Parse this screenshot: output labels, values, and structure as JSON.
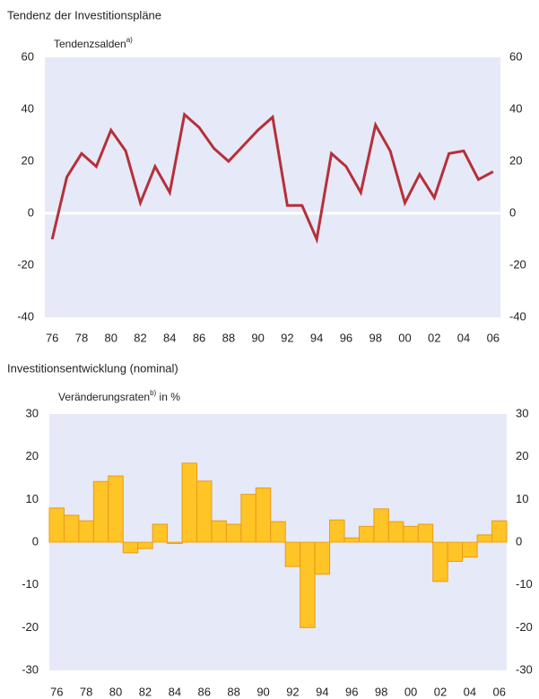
{
  "chart_data": [
    {
      "type": "line",
      "title": "Tendenz der Investitionspläne",
      "y_label": "Tendenzsalden",
      "y_label_note": "a)",
      "categories": [
        "76",
        null,
        "78",
        null,
        "80",
        null,
        "82",
        null,
        "84",
        null,
        "86",
        null,
        "88",
        null,
        "90",
        null,
        "92",
        null,
        "94",
        null,
        "96",
        null,
        "98",
        null,
        "00",
        null,
        "02",
        null,
        "04",
        null,
        "06"
      ],
      "values": [
        -10,
        14,
        23,
        18,
        32,
        24,
        4,
        18,
        8,
        38,
        33,
        25,
        20,
        26,
        32,
        37,
        3,
        3,
        -10,
        23,
        18,
        8,
        34,
        24,
        4,
        15,
        6,
        23,
        24,
        13,
        16
      ],
      "color": "#b5303a",
      "ylim": [
        -40,
        60
      ],
      "yticks": [
        -40,
        -20,
        0,
        20,
        40,
        60
      ]
    },
    {
      "type": "bar",
      "title": "Investitionsentwicklung (nominal)",
      "y_label": "Veränderungsraten",
      "y_label_note": "b)",
      "y_label_suffix": "in %",
      "categories": [
        "76",
        null,
        "78",
        null,
        "80",
        null,
        "82",
        null,
        "84",
        null,
        "86",
        null,
        "88",
        null,
        "90",
        null,
        "92",
        null,
        "94",
        null,
        "96",
        null,
        "98",
        null,
        "00",
        null,
        "02",
        null,
        "04",
        null,
        "06"
      ],
      "values": [
        8,
        6.3,
        5,
        14.2,
        15.5,
        -2.5,
        -1.5,
        4.2,
        -0.3,
        18.5,
        14.3,
        5,
        4.2,
        11.2,
        12.7,
        4.8,
        -5.7,
        -20,
        -7.5,
        5.2,
        1,
        3.7,
        7.8,
        4.8,
        3.7,
        4.2,
        -9.2,
        -4.5,
        -3.5,
        1.7,
        5
      ],
      "color": "#ffc425",
      "ylim": [
        -30,
        30
      ],
      "yticks": [
        -30,
        -20,
        -10,
        0,
        10,
        20,
        30
      ]
    }
  ]
}
